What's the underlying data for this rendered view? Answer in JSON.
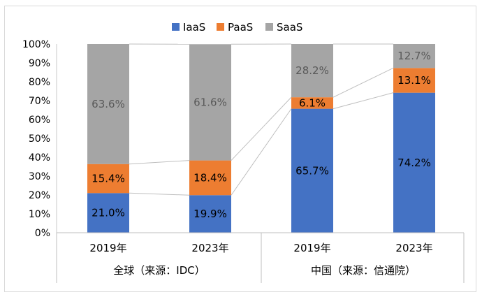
{
  "chart_data": {
    "type": "bar",
    "stacked": true,
    "legend_position": "top",
    "categories": [
      "2019年",
      "2023年",
      "2019年",
      "2023年"
    ],
    "groups": [
      {
        "label": "全球（来源：IDC）",
        "categories": [
          0,
          1
        ]
      },
      {
        "label": "中国（来源：信通院）",
        "categories": [
          2,
          3
        ]
      }
    ],
    "series": [
      {
        "name": "IaaS",
        "color": "#4472C4",
        "values": [
          21.0,
          19.9,
          65.7,
          74.2
        ],
        "labels": [
          "21.0%",
          "19.9%",
          "65.7%",
          "74.2%"
        ]
      },
      {
        "name": "PaaS",
        "color": "#ED7D31",
        "values": [
          15.4,
          18.4,
          6.1,
          13.1
        ],
        "labels": [
          "15.4%",
          "18.4%",
          "6.1%",
          "13.1%"
        ]
      },
      {
        "name": "SaaS",
        "color": "#A5A5A5",
        "values": [
          63.6,
          61.6,
          28.2,
          12.7
        ],
        "labels": [
          "63.6%",
          "61.6%",
          "28.2%",
          "12.7%"
        ]
      }
    ],
    "ylim": [
      0,
      100
    ],
    "yticks": [
      "0%",
      "10%",
      "20%",
      "30%",
      "40%",
      "50%",
      "60%",
      "70%",
      "80%",
      "90%",
      "100%"
    ],
    "series_lines": true
  }
}
